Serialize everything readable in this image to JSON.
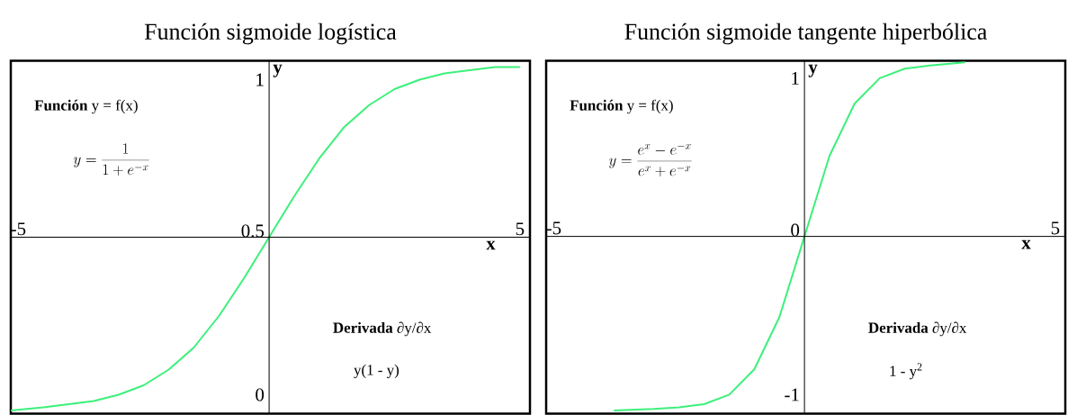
{
  "chart_data": [
    {
      "type": "line",
      "title": "Función sigmoide logística",
      "xlabel": "x",
      "ylabel": "y",
      "xlim": [
        -5.15,
        5.2
      ],
      "ylim": [
        -0.06,
        1.06
      ],
      "xticks": [
        -5,
        5
      ],
      "yticks": [
        0,
        0.5,
        1
      ],
      "marker": "none",
      "line_style": "solid",
      "x": [
        -5.15,
        -4.5,
        -4,
        -3.5,
        -3,
        -2.5,
        -2,
        -1.5,
        -1,
        -0.5,
        0,
        0.5,
        1,
        1.5,
        2,
        2.5,
        3,
        3.5,
        4,
        4.5,
        5
      ],
      "series": [
        {
          "color": "#3cf07a",
          "values": [
            -0.05,
            -0.04,
            -0.03,
            -0.02,
            0.0,
            0.03,
            0.08,
            0.15,
            0.25,
            0.37,
            0.5,
            0.63,
            0.75,
            0.85,
            0.92,
            0.97,
            1.0,
            1.02,
            1.03,
            1.04,
            1.04
          ]
        }
      ],
      "annotations": [
        "**Función** y = f(x)",
        "y = \\frac{1}{1+e^{-x}}",
        "**Derivada** ∂y/∂x",
        "y(1 - y)"
      ]
    },
    {
      "type": "line",
      "title": "Función sigmoide tangente hiperbólica",
      "xlabel": "x",
      "ylabel": "y",
      "xlim": [
        -5.15,
        5.2
      ],
      "ylim": [
        -1.12,
        1.11
      ],
      "xticks": [
        -5,
        5
      ],
      "yticks": [
        -1,
        0,
        1
      ],
      "marker": "none",
      "line_style": "solid",
      "x": [
        -3.8,
        -3,
        -2.5,
        -2,
        -1.5,
        -1,
        -0.5,
        0,
        0.5,
        1,
        1.5,
        2,
        2.5,
        3.2
      ],
      "series": [
        {
          "color": "#3cf07a",
          "values": [
            -1.1,
            -1.09,
            -1.08,
            -1.06,
            -1.0,
            -0.84,
            -0.51,
            0,
            0.51,
            0.84,
            1.0,
            1.06,
            1.08,
            1.1
          ]
        }
      ],
      "annotations": [
        "**Función** y = f(x)",
        "y = \\frac{e^{x}-e^{-x}}{e^{x}+e^{-x}}",
        "**Derivada** ∂y/∂x",
        "1 - y$^{2}$"
      ]
    }
  ]
}
